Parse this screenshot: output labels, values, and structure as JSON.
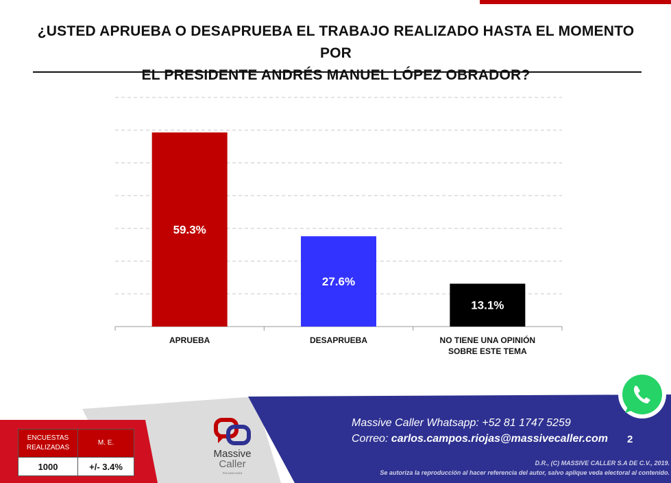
{
  "title": {
    "line1": "¿USTED APRUEBA O DESAPRUEBA EL TRABAJO REALIZADO HASTA EL MOMENTO POR",
    "line2": "EL PRESIDENTE ANDRÉS MANUEL LÓPEZ OBRADOR?"
  },
  "chart_data": {
    "type": "bar",
    "categories": [
      [
        "APRUEBA"
      ],
      [
        "DESAPRUEBA"
      ],
      [
        "NO TIENE UNA OPINIÓN",
        "SOBRE ESTE TEMA"
      ]
    ],
    "values": [
      59.3,
      27.6,
      13.1
    ],
    "value_labels": [
      "59.3%",
      "27.6%",
      "13.1%"
    ],
    "colors": [
      "#c00000",
      "#3333ff",
      "#000000"
    ],
    "ylim": [
      0,
      70
    ],
    "grid": true,
    "grid_style": "dashed",
    "legend": "none",
    "xlabel": "",
    "ylabel": ""
  },
  "footer": {
    "whatsapp": "Massive Caller Whatsapp: +52   81 1747 5259",
    "correo_label": "Correo: ",
    "correo_email": "carlos.campos.riojas@massivecaller.com",
    "page_number": "2",
    "copyright": "D.R., (C) MASSIVE CALLER S.A DE C.V., 2019.",
    "disclaimer": "Se autoriza la reproducción al hacer referencia del autor, salvo aplique veda electoral al contenido.",
    "brand_line1": "Massive",
    "brand_line2": "Caller",
    "brand_sub": "POLLING DATA",
    "stats": {
      "encuestas_label": "ENCUESTAS REALIZADAS",
      "me_label": "M. E.",
      "encuestas_value": "1000",
      "me_value": "+/- 3.4%"
    }
  },
  "colors": {
    "navy": "#2e3191",
    "red": "#c00000",
    "whatsapp_green": "#25d366"
  }
}
